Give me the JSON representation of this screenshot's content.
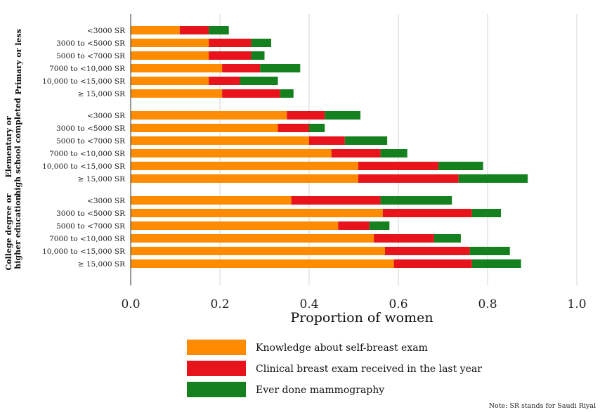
{
  "chart_data": {
    "type": "bar",
    "orientation": "horizontal",
    "stacked": true,
    "xlabel": "Proportion of women",
    "xlim": [
      0,
      1.0
    ],
    "xticks": [
      "0.0",
      "0.2",
      "0.4",
      "0.6",
      "0.8",
      "1.0"
    ],
    "grid": "vertical",
    "legend_position": "bottom",
    "note": "Note: SR stands for Saudi Riyal",
    "colors": {
      "Knowledge about self-breast exam": "#FF8C00",
      "Clinical breast exam received in the last year": "#E8141B",
      "Ever done mammography": "#14801E"
    },
    "series_names": [
      "Knowledge about self-breast exam",
      "Clinical breast exam received in the last year",
      "Ever done mammography"
    ],
    "groups": [
      {
        "label": [
          "Primary or less"
        ],
        "categories": [
          "<3000 SR",
          "3000 to <5000 SR",
          "5000 to <7000 SR",
          "7000 to <10,000 SR",
          "10,000 to <15,000 SR",
          "≥ 15,000 SR"
        ],
        "series": [
          {
            "name": "Knowledge about self-breast exam",
            "values": [
              0.11,
              0.175,
              0.175,
              0.205,
              0.175,
              0.205
            ]
          },
          {
            "name": "Clinical breast exam received in the last year",
            "values": [
              0.065,
              0.095,
              0.095,
              0.085,
              0.07,
              0.13
            ]
          },
          {
            "name": "Ever done mammography",
            "values": [
              0.045,
              0.045,
              0.03,
              0.09,
              0.085,
              0.03
            ]
          }
        ]
      },
      {
        "label": [
          "Elementary or",
          "high school completed"
        ],
        "categories": [
          "<3000 SR",
          "3000 to <5000 SR",
          "5000 to <7000 SR",
          "7000 to <10,000 SR",
          "10,000 to <15,000 SR",
          "≥ 15,000 SR"
        ],
        "series": [
          {
            "name": "Knowledge about self-breast exam",
            "values": [
              0.35,
              0.33,
              0.4,
              0.45,
              0.51,
              0.51
            ]
          },
          {
            "name": "Clinical breast exam received in the last year",
            "values": [
              0.085,
              0.07,
              0.08,
              0.11,
              0.18,
              0.225
            ]
          },
          {
            "name": "Ever done mammography",
            "values": [
              0.08,
              0.035,
              0.095,
              0.06,
              0.1,
              0.155
            ]
          }
        ]
      },
      {
        "label": [
          "College degree or",
          "higher education"
        ],
        "categories": [
          "<3000 SR",
          "3000 to <5000 SR",
          "5000 to <7000 SR",
          "7000 to <10,000 SR",
          "10,000 to <15,000 SR",
          "≥ 15,000 SR"
        ],
        "series": [
          {
            "name": "Knowledge about self-breast exam",
            "values": [
              0.36,
              0.565,
              0.465,
              0.545,
              0.57,
              0.59
            ]
          },
          {
            "name": "Clinical breast exam received in the last year",
            "values": [
              0.2,
              0.2,
              0.07,
              0.135,
              0.19,
              0.175
            ]
          },
          {
            "name": "Ever done mammography",
            "values": [
              0.16,
              0.065,
              0.045,
              0.06,
              0.09,
              0.11
            ]
          }
        ]
      }
    ]
  }
}
